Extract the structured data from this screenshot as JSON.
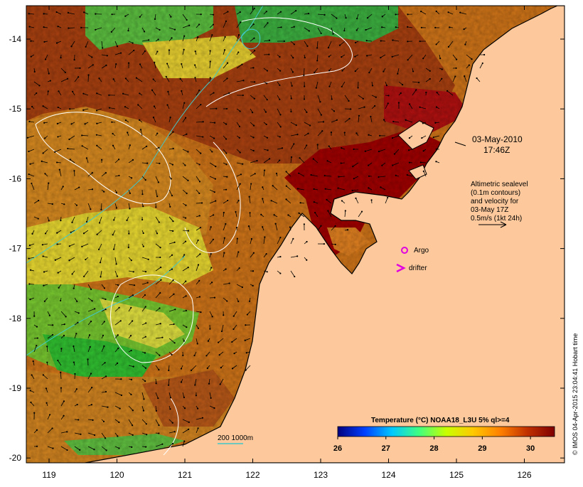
{
  "map": {
    "datetime_line1": "03-May-2010",
    "datetime_line2": "17:46Z",
    "altimetry_note": [
      "Altimetric sealevel",
      "(0.1m contours)",
      "and velocity for",
      "03-May 17Z",
      "0.5m/s (1kt 24h)"
    ],
    "legend_argo": "Argo",
    "legend_drifter": "drifter",
    "bathy_label": "200  1000m",
    "credit": "© IMOS 04-Apr-2015 23:04:41 Hobart time",
    "colorbar": {
      "title": "Temperature (°C) NOAA18_L3U 5% ql>=4",
      "ticks": [
        "26",
        "27",
        "28",
        "29",
        "30"
      ],
      "range": [
        26,
        30.5
      ],
      "stops": [
        "#00007f",
        "#0040ff",
        "#00c8ff",
        "#40ff80",
        "#c8ff00",
        "#ffc800",
        "#ff8000",
        "#c03000",
        "#800000"
      ]
    },
    "lon_ticks": [
      "119",
      "120",
      "121",
      "122",
      "123",
      "124",
      "125",
      "126"
    ],
    "lat_ticks": [
      "-14",
      "-15",
      "-16",
      "-17",
      "-18",
      "-19",
      "-20"
    ],
    "colors": {
      "land": "#fdc99c",
      "warm_sea": "#c86414",
      "hot_sea": "#a00000",
      "cool_sea": "#f0d010",
      "cold_sea": "#30c030",
      "argo": "#e000e0",
      "contour": "#ffffff",
      "bathy": "#40c8c8"
    }
  }
}
